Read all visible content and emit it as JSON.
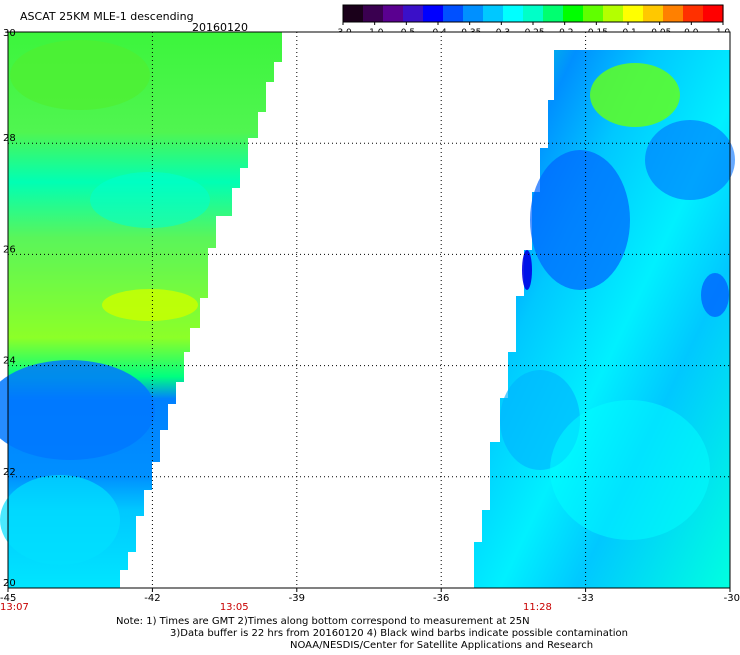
{
  "header": {
    "title": "ASCAT 25KM MLE-1 descending",
    "date": "20160120"
  },
  "colorbar": {
    "colors": [
      "#1a001a",
      "#3a0050",
      "#5a0090",
      "#3a10c8",
      "#0000ff",
      "#0050ff",
      "#0090ff",
      "#00c8ff",
      "#00ffff",
      "#00ffc8",
      "#00ff70",
      "#00ff00",
      "#60ff00",
      "#b4ff00",
      "#ffff00",
      "#ffc800",
      "#ff8000",
      "#ff3000",
      "#ff0000"
    ],
    "tick_labels": [
      "-3.0",
      "-1.0",
      "-0.5",
      "-0.4",
      "-0.35",
      "-0.3",
      "-0.25",
      "-0.2",
      "-0.15",
      "-0.1",
      "-0.05",
      "0.0",
      "1.0"
    ]
  },
  "map": {
    "lon_range": [
      -45,
      -30
    ],
    "lat_range": [
      20,
      30
    ],
    "x_tick_labels": [
      "-45",
      "-42",
      "-39",
      "-36",
      "-33",
      "-30"
    ],
    "y_tick_labels": [
      "30",
      "28",
      "26",
      "24",
      "22",
      "20"
    ],
    "time_labels": [
      "13:07",
      "13:05",
      "11:28"
    ],
    "time_label_color": "#c80000",
    "swath_colors": {
      "green": "#3cf53c",
      "yellow_green": "#b4ff00",
      "cyan": "#00ffff",
      "teal": "#00ffc8",
      "light_blue": "#00c8ff",
      "mid_blue": "#0090ff",
      "dark_blue": "#0050ff",
      "navy": "#0000ff"
    }
  },
  "footer": {
    "note_line1": "Note: 1) Times are GMT 2)Times along bottom correspond to measurement at 25N",
    "note_line2": "3)Data buffer is 22 hrs from 20160120 4) Black wind barbs indicate possible contamination",
    "credit": "NOAA/NESDIS/Center for Satellite Applications and Research"
  }
}
